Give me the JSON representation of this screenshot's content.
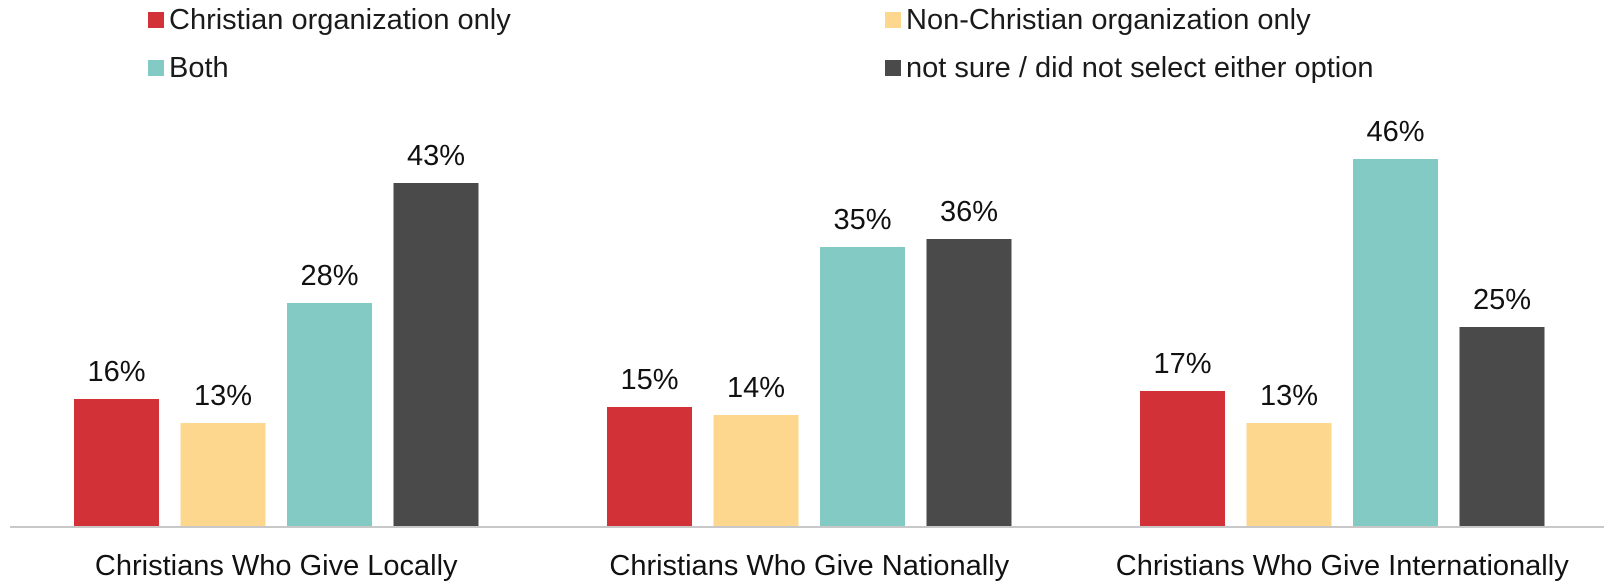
{
  "chart_data": {
    "type": "bar",
    "title": "",
    "xlabel": "",
    "ylabel": "",
    "ylim": [
      0,
      50
    ],
    "grid": false,
    "legend_position": "top",
    "categories": [
      "Christians Who Give Locally",
      "Christians Who Give Nationally",
      "Christians Who Give Internationally"
    ],
    "series": [
      {
        "name": "Christian organization only",
        "color": "#d23237",
        "values": [
          16,
          15,
          17
        ],
        "labels": [
          "16%",
          "15%",
          "17%"
        ]
      },
      {
        "name": "Non-Christian organization only",
        "color": "#fed78f",
        "values": [
          13,
          14,
          13
        ],
        "labels": [
          "13%",
          "14%",
          "13%"
        ]
      },
      {
        "name": "Both",
        "color": "#82cac3",
        "values": [
          28,
          35,
          46
        ],
        "labels": [
          "28%",
          "35%",
          "46%"
        ]
      },
      {
        "name": "not sure / did not select either option",
        "color": "#4a4a4a",
        "values": [
          43,
          36,
          25
        ],
        "labels": [
          "43%",
          "36%",
          "25%"
        ]
      }
    ]
  }
}
